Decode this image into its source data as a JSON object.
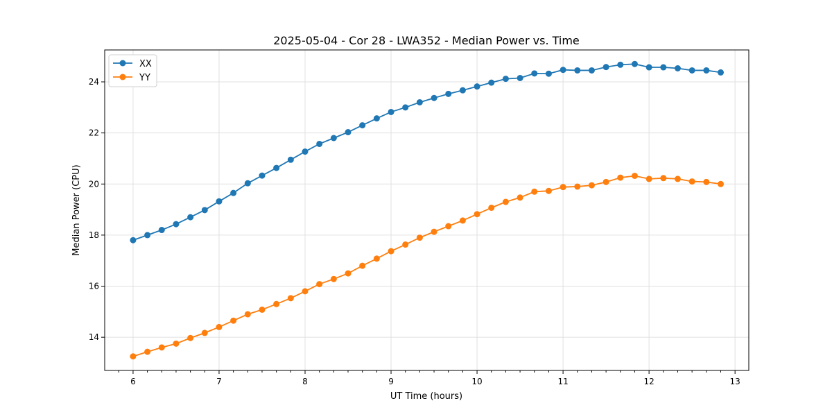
{
  "chart_data": {
    "type": "line",
    "title": "2025-05-04 - Cor 28 - LWA352 - Median Power vs. Time",
    "xlabel": "UT Time (hours)",
    "ylabel": "Median Power (CPU)",
    "xlim": [
      5.67,
      13.16
    ],
    "ylim": [
      12.7,
      25.25
    ],
    "xticks": [
      6,
      7,
      8,
      9,
      10,
      11,
      12,
      13
    ],
    "yticks": [
      14,
      16,
      18,
      20,
      22,
      24
    ],
    "grid": true,
    "legend": "top-left",
    "x_start": 6.0,
    "x_step_hours": 0.16667,
    "series": [
      {
        "name": "XX",
        "color": "#1f77b4",
        "values": [
          17.8,
          18.0,
          18.2,
          18.43,
          18.7,
          18.98,
          19.32,
          19.65,
          20.03,
          20.33,
          20.63,
          20.95,
          21.27,
          21.57,
          21.8,
          22.03,
          22.3,
          22.57,
          22.82,
          23.0,
          23.2,
          23.37,
          23.53,
          23.67,
          23.82,
          23.97,
          24.12,
          24.15,
          24.33,
          24.32,
          24.47,
          24.45,
          24.45,
          24.58,
          24.67,
          24.7,
          24.57,
          24.57,
          24.53,
          24.45,
          24.45,
          24.37
        ]
      },
      {
        "name": "YY",
        "color": "#ff7f0e",
        "values": [
          13.25,
          13.43,
          13.6,
          13.75,
          13.97,
          14.17,
          14.4,
          14.65,
          14.9,
          15.08,
          15.3,
          15.53,
          15.8,
          16.08,
          16.28,
          16.5,
          16.8,
          17.08,
          17.37,
          17.63,
          17.9,
          18.13,
          18.35,
          18.57,
          18.82,
          19.07,
          19.3,
          19.47,
          19.7,
          19.73,
          19.88,
          19.9,
          19.95,
          20.08,
          20.25,
          20.32,
          20.2,
          20.23,
          20.2,
          20.1,
          20.08,
          20.0
        ]
      }
    ]
  }
}
